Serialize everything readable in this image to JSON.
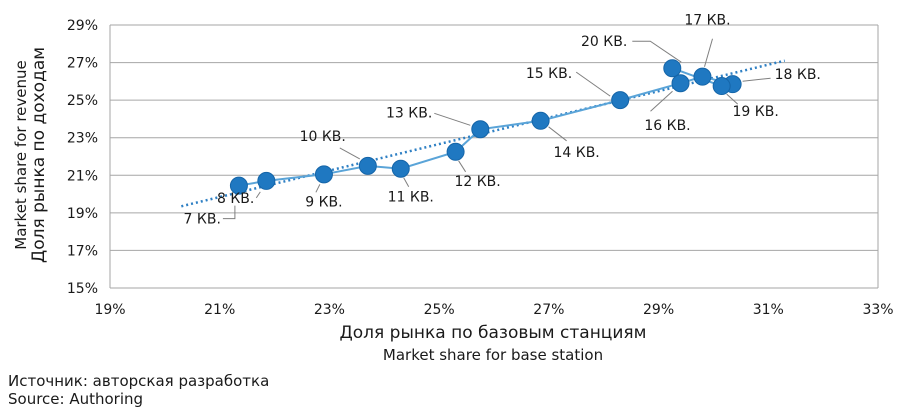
{
  "chart_data": {
    "type": "scatter",
    "xlabel": "Доля рынка по базовым станциям",
    "xlabel_en": "Market share for base station",
    "ylabel": "Доля рынка по доходам",
    "ylabel_en": "Market share for revenue",
    "xlim": [
      19,
      33
    ],
    "ylim": [
      15,
      29
    ],
    "xticks": [
      19,
      21,
      23,
      25,
      27,
      29,
      31,
      33
    ],
    "yticks": [
      15,
      17,
      19,
      21,
      23,
      25,
      27,
      29
    ],
    "tick_suffix": "%",
    "grid": "horizontal",
    "points": [
      {
        "label": "7 КВ.",
        "x": 21.35,
        "y": 20.45
      },
      {
        "label": "8 КВ.",
        "x": 21.85,
        "y": 20.7
      },
      {
        "label": "9 КВ.",
        "x": 22.9,
        "y": 21.05
      },
      {
        "label": "10 КВ.",
        "x": 23.7,
        "y": 21.5
      },
      {
        "label": "11 КВ.",
        "x": 24.3,
        "y": 21.35
      },
      {
        "label": "12 КВ.",
        "x": 25.3,
        "y": 22.25
      },
      {
        "label": "13 КВ.",
        "x": 25.75,
        "y": 23.45
      },
      {
        "label": "14 КВ.",
        "x": 26.85,
        "y": 23.9
      },
      {
        "label": "15 КВ.",
        "x": 28.3,
        "y": 25.0
      },
      {
        "label": "16 КВ.",
        "x": 29.4,
        "y": 25.9
      },
      {
        "label": "17 КВ.",
        "x": 29.8,
        "y": 26.25
      },
      {
        "label": "18 КВ.",
        "x": 30.35,
        "y": 25.85
      },
      {
        "label": "19 КВ.",
        "x": 30.15,
        "y": 25.75
      },
      {
        "label": "20 КВ.",
        "x": 29.25,
        "y": 26.7
      }
    ],
    "connect_order": [
      "7 КВ.",
      "8 КВ.",
      "9 КВ.",
      "10 КВ.",
      "11 КВ.",
      "12 КВ.",
      "13 КВ.",
      "14 КВ.",
      "15 КВ.",
      "16 КВ.",
      "17 КВ.",
      "18 КВ.",
      "19 КВ.",
      "20 КВ."
    ],
    "trendline": {
      "style": "dotted",
      "x": [
        20.3,
        31.3
      ],
      "y": [
        19.35,
        27.1
      ]
    },
    "colors": {
      "marker": "#1f78c1",
      "line": "#5aa4d8",
      "trend": "#2f80c4",
      "grid": "#a6a6a6"
    }
  },
  "source": {
    "ru": "Источник: авторская разработка",
    "en": "Source: Authoring"
  }
}
